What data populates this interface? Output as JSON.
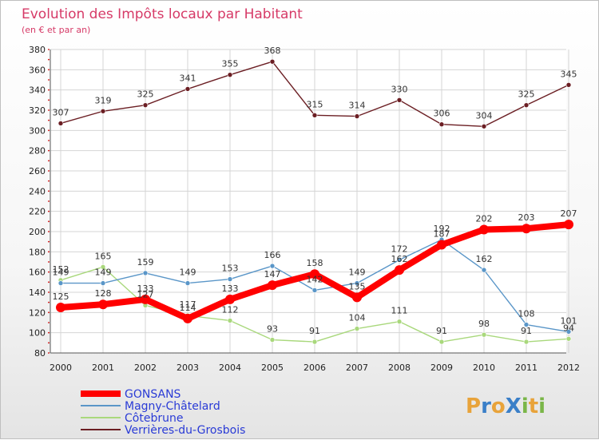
{
  "chart_data": {
    "type": "line",
    "title": "Evolution des Impôts locaux par Habitant",
    "subtitle": "(en € et par an)",
    "categories": [
      "2000",
      "2001",
      "2002",
      "2003",
      "2004",
      "2005",
      "2006",
      "2007",
      "2008",
      "2009",
      "2010",
      "2011",
      "2012"
    ],
    "ylim": [
      80,
      380
    ],
    "yticks": [
      80,
      100,
      120,
      140,
      160,
      180,
      200,
      220,
      240,
      260,
      280,
      300,
      320,
      340,
      360,
      380
    ],
    "grid": true,
    "legend_position": "bottom-left",
    "series": [
      {
        "name": "Verrières-du-Grosbois",
        "color": "#6b1e23",
        "values": [
          307,
          319,
          325,
          341,
          355,
          368,
          315,
          314,
          330,
          306,
          304,
          325,
          345
        ]
      },
      {
        "name": "Magny-Châtelard",
        "color": "#5a96c8",
        "values": [
          149,
          149,
          159,
          149,
          153,
          166,
          142,
          149,
          172,
          192,
          162,
          108,
          101
        ]
      },
      {
        "name": "Côtebrune",
        "color": "#a9d87c",
        "values": [
          152,
          165,
          127,
          117,
          112,
          93,
          91,
          104,
          111,
          91,
          98,
          91,
          94
        ]
      },
      {
        "name": "GONSANS",
        "color": "#ff0000",
        "values": [
          125,
          128,
          133,
          114,
          133,
          147,
          158,
          135,
          162,
          187,
          202,
          203,
          207
        ]
      }
    ],
    "legend_order": [
      "GONSANS",
      "Magny-Châtelard",
      "Côtebrune",
      "Verrières-du-Grosbois"
    ]
  },
  "logo": {
    "text": "ProXiti",
    "letters": [
      "P",
      "r",
      "o",
      "X",
      "i",
      "t",
      "i"
    ],
    "colors": [
      "#e8a33a",
      "#3a7fc8",
      "#e8a33a",
      "#3a7fc8",
      "#7ab648",
      "#e8a33a",
      "#7ab648"
    ]
  }
}
